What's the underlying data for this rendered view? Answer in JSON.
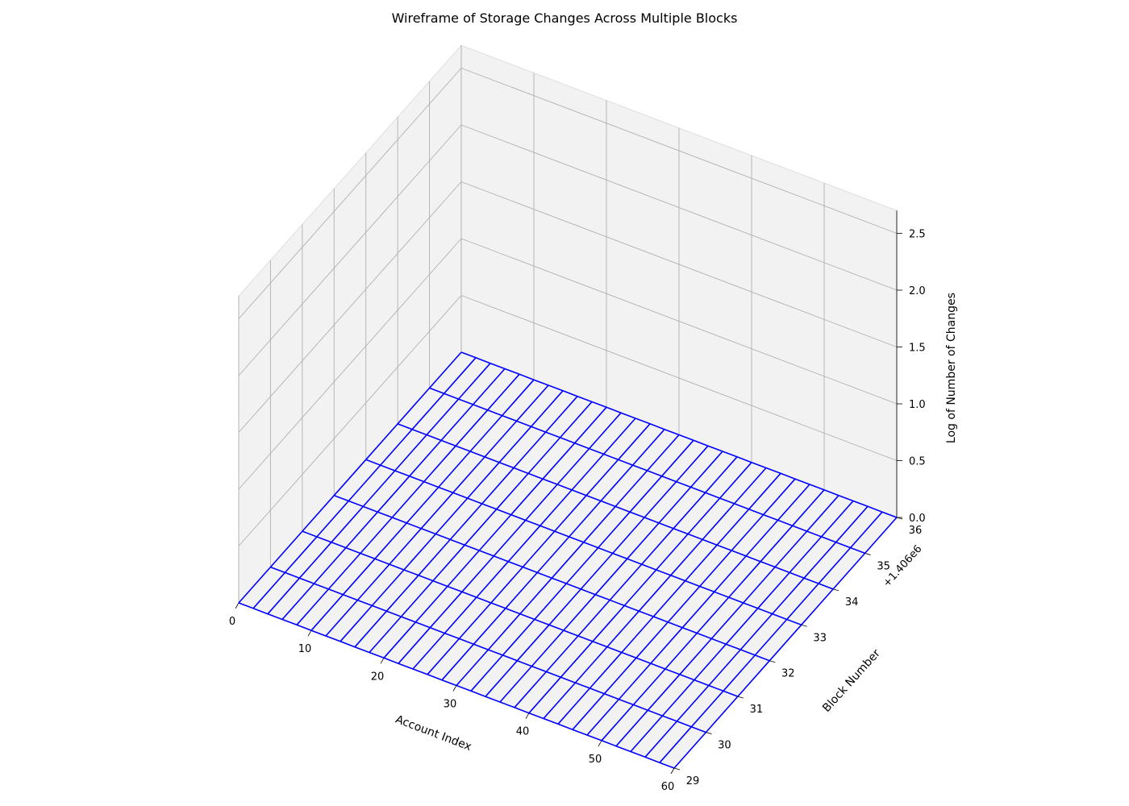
{
  "chart_data": {
    "type": "wireframe",
    "title": "Wireframe of Storage Changes Across Multiple Blocks",
    "xlabel": "Account Index",
    "ylabel": "Block Number",
    "zlabel": "Log of Number of Changes",
    "y_offset_label": "+1.406e6",
    "x_ticks": [
      "0",
      "10",
      "20",
      "30",
      "40",
      "50",
      "60"
    ],
    "y_ticks": [
      "29",
      "30",
      "31",
      "32",
      "33",
      "34",
      "35",
      "36"
    ],
    "z_ticks": [
      "0.0",
      "0.5",
      "1.0",
      "1.5",
      "2.0",
      "2.5"
    ],
    "xlim": [
      0,
      60
    ],
    "ylim": [
      29,
      36
    ],
    "zlim": [
      0,
      2.7
    ],
    "grid": true,
    "line_color": "#0000ff",
    "pane_color": "#f2f2f2",
    "x": [
      0,
      2,
      4,
      6,
      8,
      10,
      12,
      14,
      16,
      18,
      20,
      22,
      24,
      26,
      28,
      30,
      32,
      34,
      36,
      38,
      40,
      42,
      44,
      46,
      48,
      50,
      52,
      54,
      56,
      58,
      60
    ],
    "block_numbers": [
      29,
      30,
      31,
      32,
      33,
      34,
      35,
      36
    ],
    "z": [
      [
        0.0,
        0.0,
        0.0,
        0.0,
        0.0,
        0.0,
        0.0,
        0.0,
        0.0,
        0.0,
        0.0,
        0.0,
        0.0,
        0.0,
        0.0,
        0.0,
        0.0,
        0.0,
        0.0,
        0.0,
        0.0,
        0.0,
        0.0,
        0.0,
        0.0,
        0.0,
        0.0,
        0.0,
        0.0,
        0.0,
        0.0
      ],
      [
        0.0,
        0.0,
        0.0,
        0.0,
        0.0,
        0.0,
        0.0,
        0.0,
        0.0,
        0.0,
        0.0,
        0.0,
        0.0,
        0.0,
        0.0,
        0.0,
        0.0,
        0.0,
        0.0,
        0.0,
        0.0,
        0.0,
        0.0,
        0.0,
        0.0,
        0.0,
        0.0,
        0.0,
        0.0,
        0.0,
        0.0
      ],
      [
        0.0,
        0.0,
        0.0,
        0.0,
        0.0,
        0.0,
        0.0,
        0.0,
        0.0,
        0.0,
        0.0,
        0.0,
        0.0,
        0.0,
        0.0,
        0.0,
        0.0,
        0.0,
        0.0,
        0.0,
        0.0,
        0.0,
        0.0,
        0.0,
        0.0,
        0.0,
        0.0,
        0.0,
        0.0,
        0.0,
        0.0
      ],
      [
        0.0,
        0.0,
        0.0,
        0.0,
        0.0,
        0.0,
        0.0,
        0.0,
        0.0,
        0.0,
        0.0,
        0.0,
        0.0,
        0.0,
        0.0,
        0.0,
        0.0,
        0.0,
        0.0,
        0.0,
        0.0,
        0.0,
        0.0,
        0.0,
        0.0,
        0.0,
        0.0,
        0.0,
        0.0,
        0.0,
        0.0
      ],
      [
        0.0,
        0.0,
        0.0,
        0.0,
        0.0,
        0.0,
        0.0,
        0.0,
        0.0,
        0.0,
        0.0,
        0.0,
        0.0,
        0.0,
        0.0,
        0.0,
        0.0,
        0.0,
        0.0,
        0.0,
        0.0,
        0.0,
        0.0,
        0.0,
        0.0,
        0.0,
        0.0,
        0.0,
        0.0,
        0.0,
        0.0
      ],
      [
        0.0,
        0.0,
        0.0,
        0.0,
        0.0,
        0.0,
        0.0,
        0.0,
        0.0,
        0.0,
        0.0,
        0.0,
        0.0,
        0.0,
        0.0,
        0.0,
        0.0,
        0.0,
        0.0,
        0.0,
        0.0,
        0.0,
        0.0,
        0.0,
        0.0,
        0.0,
        0.0,
        0.0,
        0.0,
        0.0,
        0.0
      ],
      [
        0.0,
        0.0,
        0.0,
        0.0,
        0.0,
        0.0,
        0.0,
        0.0,
        0.0,
        0.0,
        0.0,
        0.0,
        0.0,
        0.0,
        0.0,
        0.0,
        0.0,
        0.0,
        0.0,
        0.0,
        0.0,
        0.0,
        0.0,
        0.0,
        0.0,
        0.0,
        0.0,
        0.0,
        0.0,
        0.0,
        0.0
      ],
      [
        0.0,
        0.0,
        0.0,
        0.0,
        0.0,
        0.0,
        0.0,
        0.0,
        0.0,
        0.0,
        0.0,
        0.0,
        0.0,
        0.0,
        0.0,
        0.0,
        0.0,
        0.0,
        0.0,
        0.0,
        0.0,
        0.0,
        0.0,
        0.0,
        0.0,
        0.0,
        0.0,
        0.0,
        0.0,
        0.0,
        0.0
      ]
    ]
  }
}
